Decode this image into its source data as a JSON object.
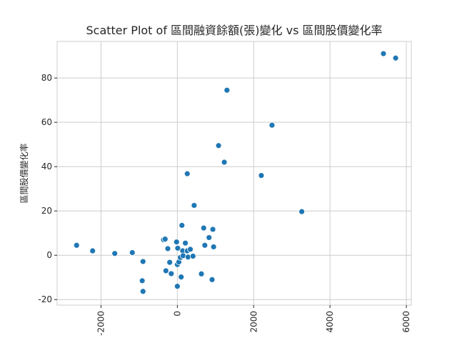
{
  "chart_data": {
    "type": "scatter",
    "title": "Scatter Plot of 區間融資餘額(張)變化 vs 區間股價變化率",
    "xlabel": "",
    "ylabel": "區間股價變化率",
    "xlim": [
      -3150,
      6130
    ],
    "ylim": [
      -22.5,
      96.5
    ],
    "x_ticks": [
      -2000,
      0,
      2000,
      4000,
      6000
    ],
    "y_ticks": [
      -20,
      0,
      20,
      40,
      60,
      80
    ],
    "x_tick_rotation": 90,
    "grid": true,
    "points": [
      {
        "x": -2640,
        "y": 4.5
      },
      {
        "x": -2220,
        "y": 2.0
      },
      {
        "x": -1640,
        "y": 0.8
      },
      {
        "x": -1180,
        "y": 1.2
      },
      {
        "x": -900,
        "y": -2.8
      },
      {
        "x": -920,
        "y": -11.5
      },
      {
        "x": -900,
        "y": -16.3
      },
      {
        "x": -360,
        "y": 7.0
      },
      {
        "x": -320,
        "y": 7.3
      },
      {
        "x": -250,
        "y": 3.0
      },
      {
        "x": -300,
        "y": -7.0
      },
      {
        "x": -200,
        "y": -3.2
      },
      {
        "x": -160,
        "y": -8.3
      },
      {
        "x": -20,
        "y": 6.0
      },
      {
        "x": 10,
        "y": 3.2
      },
      {
        "x": 0,
        "y": -4.2
      },
      {
        "x": 40,
        "y": -3.0
      },
      {
        "x": 0,
        "y": -14.0
      },
      {
        "x": 80,
        "y": -1.0
      },
      {
        "x": 120,
        "y": 13.5
      },
      {
        "x": 140,
        "y": 2.0
      },
      {
        "x": 150,
        "y": -0.2
      },
      {
        "x": 100,
        "y": -9.8
      },
      {
        "x": 210,
        "y": 5.5
      },
      {
        "x": 260,
        "y": 2.0
      },
      {
        "x": 280,
        "y": -0.8
      },
      {
        "x": 340,
        "y": 2.7
      },
      {
        "x": 410,
        "y": -0.4
      },
      {
        "x": 260,
        "y": 36.8
      },
      {
        "x": 440,
        "y": 22.5
      },
      {
        "x": 630,
        "y": -8.4
      },
      {
        "x": 690,
        "y": 12.3
      },
      {
        "x": 720,
        "y": 4.5
      },
      {
        "x": 830,
        "y": 8.0
      },
      {
        "x": 930,
        "y": 11.7
      },
      {
        "x": 950,
        "y": 3.8
      },
      {
        "x": 910,
        "y": -11.0
      },
      {
        "x": 1080,
        "y": 49.5
      },
      {
        "x": 1230,
        "y": 42.0
      },
      {
        "x": 1300,
        "y": 74.5
      },
      {
        "x": 2200,
        "y": 36.0
      },
      {
        "x": 2480,
        "y": 58.7
      },
      {
        "x": 3260,
        "y": 19.7
      },
      {
        "x": 5400,
        "y": 91.0
      },
      {
        "x": 5720,
        "y": 89.0
      }
    ]
  }
}
